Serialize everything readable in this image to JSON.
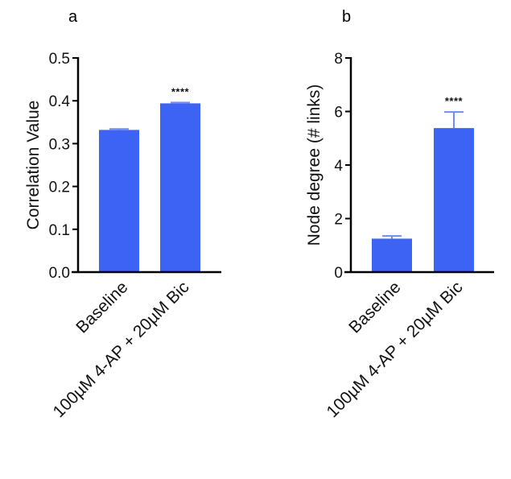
{
  "chart_data": [
    {
      "panel": "a",
      "type": "bar",
      "title": "",
      "xlabel": "",
      "ylabel": "Correlation Value",
      "ylim": [
        0,
        0.5
      ],
      "yticks": [
        "0.0",
        "0.1",
        "0.2",
        "0.3",
        "0.4",
        "0.5"
      ],
      "ytick_values": [
        0,
        0.1,
        0.2,
        0.3,
        0.4,
        0.5
      ],
      "categories": [
        "Baseline",
        "100µM 4-AP + 20µM Bic"
      ],
      "values": [
        0.332,
        0.394
      ],
      "errors": [
        0.002,
        0.002
      ],
      "annotations": [
        "",
        "****"
      ],
      "bar_color": "#3d63f5",
      "grid": false
    },
    {
      "panel": "b",
      "type": "bar",
      "title": "",
      "xlabel": "",
      "ylabel": "Node degree (# links)",
      "ylim": [
        0,
        8
      ],
      "yticks": [
        "0",
        "2",
        "4",
        "6",
        "8"
      ],
      "ytick_values": [
        0,
        2,
        4,
        6,
        8
      ],
      "categories": [
        "Baseline",
        "100µM 4-AP + 20µM Bic"
      ],
      "values": [
        1.25,
        5.38
      ],
      "errors": [
        0.1,
        0.6
      ],
      "annotations": [
        "",
        "****"
      ],
      "bar_color": "#3d63f5",
      "grid": false
    }
  ]
}
